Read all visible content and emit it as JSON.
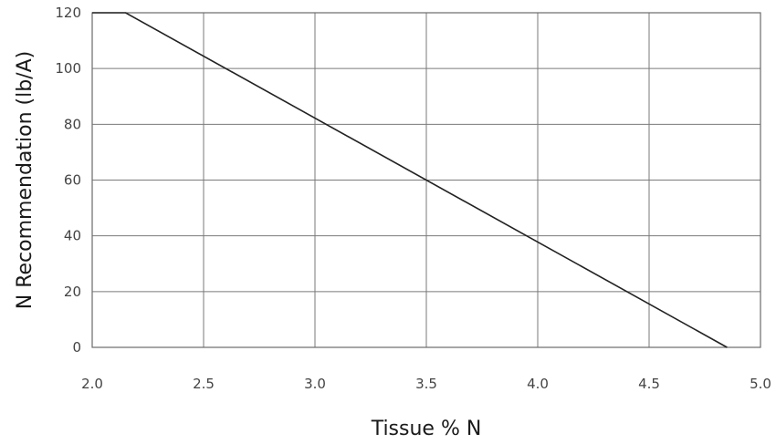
{
  "chart_data": {
    "type": "line",
    "xlabel": "Tissue % N",
    "ylabel": "N Recommendation (lb/A)",
    "xlim": [
      2.0,
      5.0
    ],
    "ylim": [
      0,
      120
    ],
    "x_ticks": [
      "2.0",
      "2.5",
      "3.0",
      "3.5",
      "4.0",
      "4.5",
      "5.0"
    ],
    "y_ticks": [
      "0",
      "20",
      "40",
      "60",
      "80",
      "100",
      "120"
    ],
    "grid": true,
    "series": [
      {
        "x": [
          2.0,
          2.15,
          4.85
        ],
        "y": [
          120,
          120,
          0
        ],
        "color": "#222222"
      }
    ]
  }
}
